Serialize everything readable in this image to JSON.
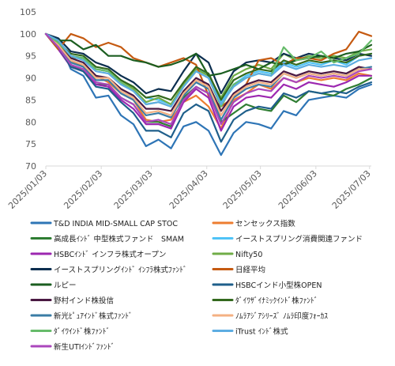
{
  "chart_data": {
    "type": "line",
    "title": "",
    "xlabel": "",
    "ylabel": "",
    "ylim": [
      70,
      105
    ],
    "yticks": [
      70,
      75,
      80,
      85,
      90,
      95,
      100,
      105
    ],
    "grid": false,
    "legend_position": "bottom",
    "x": [
      "2025-01-03",
      "2025-01-10",
      "2025-01-17",
      "2025-01-24",
      "2025-01-31",
      "2025-02-07",
      "2025-02-14",
      "2025-02-21",
      "2025-02-28",
      "2025-03-07",
      "2025-03-14",
      "2025-03-21",
      "2025-03-28",
      "2025-04-04",
      "2025-04-11",
      "2025-04-18",
      "2025-04-25",
      "2025-05-02",
      "2025-05-09",
      "2025-05-16",
      "2025-05-23",
      "2025-05-30",
      "2025-06-06",
      "2025-06-13",
      "2025-06-20",
      "2025-06-27",
      "2025-07-04"
    ],
    "xticks": [
      "2025/01/03",
      "2025/02/03",
      "2025/03/03",
      "2025/04/03",
      "2025/05/03",
      "2025/06/03",
      "2025/07/03"
    ],
    "series": [
      {
        "name": "T&D INDIA MID-SMALL CAP STOC",
        "color": "#2E75B6",
        "values": [
          100,
          98.5,
          92.0,
          90.5,
          85.5,
          86.0,
          81.5,
          79.5,
          74.5,
          76.0,
          74.0,
          79.0,
          80.0,
          78.0,
          72.5,
          77.5,
          80.0,
          79.5,
          78.5,
          82.5,
          81.5,
          85.0,
          85.5,
          86.0,
          85.5,
          87.5,
          88.5
        ]
      },
      {
        "name": "センセックス指数",
        "color": "#ED7D31",
        "values": [
          100,
          97.5,
          94.0,
          92.5,
          90.5,
          89.0,
          86.5,
          85.0,
          80.5,
          80.0,
          80.5,
          84.5,
          86.0,
          83.5,
          78.5,
          85.0,
          86.5,
          88.5,
          87.5,
          90.0,
          89.0,
          90.0,
          89.5,
          90.0,
          89.5,
          91.0,
          90.5
        ]
      },
      {
        "name": "高成長ｲﾝﾄﾞ 中型株式ファンド　SMAM",
        "color": "#2E7D32",
        "values": [
          100,
          97.5,
          93.0,
          91.5,
          88.5,
          88.5,
          85.5,
          84.0,
          80.0,
          80.0,
          79.0,
          85.5,
          88.0,
          86.5,
          80.0,
          82.0,
          84.0,
          83.0,
          82.5,
          86.0,
          84.5,
          87.0,
          86.5,
          86.0,
          87.5,
          88.5,
          90.0
        ]
      },
      {
        "name": "イーストスプリング消費関連ファンド",
        "color": "#4FC3F7",
        "values": [
          100,
          98.5,
          95.0,
          94.5,
          92.0,
          91.5,
          89.5,
          88.0,
          85.5,
          85.0,
          84.0,
          88.0,
          92.0,
          91.0,
          84.5,
          88.5,
          90.5,
          91.5,
          91.0,
          93.5,
          92.5,
          93.5,
          93.0,
          94.0,
          93.0,
          95.0,
          95.5
        ]
      },
      {
        "name": "HSBCｲﾝﾄﾞ インフラ株式オープン",
        "color": "#9C27B0",
        "values": [
          100,
          96.5,
          92.5,
          91.5,
          88.5,
          88.0,
          85.0,
          83.0,
          79.5,
          79.5,
          78.5,
          84.5,
          87.5,
          85.5,
          78.0,
          83.5,
          85.5,
          86.0,
          85.5,
          88.5,
          87.5,
          89.0,
          88.5,
          88.0,
          89.0,
          90.5,
          90.5
        ]
      },
      {
        "name": "Nifty50",
        "color": "#70AD47",
        "values": [
          100,
          97.5,
          94.5,
          94.5,
          92.0,
          91.5,
          89.5,
          87.5,
          84.5,
          85.5,
          84.0,
          88.5,
          92.0,
          90.5,
          85.5,
          90.5,
          92.0,
          93.0,
          92.0,
          95.5,
          94.0,
          95.0,
          94.5,
          95.0,
          94.5,
          96.0,
          96.5
        ]
      },
      {
        "name": "イーストスプリングｲﾝﾄﾞ ｲﾝﾌﾗ株式ﾌｧﾝﾄﾞ",
        "color": "#0B2E4F",
        "values": [
          100,
          99.0,
          96.0,
          95.5,
          93.5,
          92.5,
          90.5,
          89.0,
          86.5,
          87.5,
          87.0,
          91.5,
          95.5,
          93.5,
          86.5,
          91.5,
          93.5,
          94.0,
          93.5,
          95.5,
          94.5,
          95.5,
          95.0,
          94.5,
          94.0,
          95.5,
          95.0
        ]
      },
      {
        "name": "日経平均",
        "color": "#C55A11",
        "values": [
          100,
          96.5,
          100.0,
          99.0,
          97.0,
          98.0,
          97.0,
          94.5,
          93.5,
          92.5,
          93.5,
          94.5,
          93.0,
          86.0,
          83.5,
          85.5,
          88.5,
          94.0,
          94.5,
          93.0,
          94.5,
          94.5,
          94.0,
          95.5,
          96.5,
          100.5,
          99.5
        ]
      },
      {
        "name": "ルピー",
        "color": "#1B5E20",
        "values": [
          100,
          98.5,
          98.5,
          96.5,
          97.5,
          95.0,
          95.0,
          94.0,
          93.5,
          92.5,
          93.0,
          94.0,
          95.5,
          90.5,
          91.0,
          92.0,
          93.0,
          92.0,
          93.5,
          93.0,
          94.0,
          94.5,
          95.0,
          94.5,
          95.5,
          96.0,
          97.5
        ]
      },
      {
        "name": "HSBCインド小型株OPEN",
        "color": "#1F5F8B",
        "values": [
          100,
          97.0,
          92.5,
          91.5,
          88.0,
          87.5,
          84.5,
          82.0,
          78.0,
          78.0,
          76.5,
          82.0,
          84.0,
          82.5,
          75.5,
          80.5,
          82.5,
          83.5,
          83.0,
          86.5,
          85.5,
          87.0,
          86.5,
          87.0,
          86.5,
          88.0,
          89.0
        ]
      },
      {
        "name": "野村インド株投信",
        "color": "#4A1942",
        "values": [
          100,
          97.5,
          94.5,
          93.5,
          90.5,
          90.0,
          87.5,
          86.0,
          83.0,
          83.0,
          82.5,
          87.0,
          90.0,
          88.5,
          82.5,
          86.5,
          88.5,
          89.5,
          89.0,
          91.5,
          90.5,
          91.5,
          91.0,
          91.5,
          91.0,
          92.5,
          92.0
        ]
      },
      {
        "name": "ﾀﾞｲﾜｻﾞｲﾅﾐｯｸｲﾝﾄﾞ株ﾌｧﾝﾄﾞ",
        "color": "#33691E",
        "values": [
          100,
          98.0,
          95.5,
          95.0,
          92.5,
          92.0,
          89.5,
          88.0,
          85.5,
          86.0,
          85.0,
          89.0,
          92.5,
          91.0,
          85.0,
          89.5,
          91.0,
          92.0,
          91.5,
          94.0,
          93.0,
          94.0,
          93.5,
          94.0,
          93.5,
          95.0,
          95.5
        ]
      },
      {
        "name": "新光ﾋﾟｭｱｲﾝﾄﾞ株式ﾌｧﾝﾄﾞ",
        "color": "#3A7CA5",
        "values": [
          100,
          97.0,
          93.5,
          92.5,
          89.5,
          89.5,
          86.5,
          85.0,
          81.5,
          82.0,
          81.0,
          86.0,
          89.0,
          87.5,
          80.5,
          85.5,
          87.5,
          88.5,
          88.0,
          91.0,
          90.0,
          91.0,
          90.5,
          91.0,
          90.5,
          92.0,
          92.5
        ]
      },
      {
        "name": "ﾉﾑﾗｱｼﾞｱｼﾘｰｽﾞ ﾉﾑﾗ印度ﾌｫｰｶｽ",
        "color": "#F4B183",
        "values": [
          100,
          97.5,
          94.0,
          93.0,
          90.0,
          90.0,
          87.0,
          85.5,
          82.0,
          82.5,
          81.5,
          86.5,
          89.5,
          88.0,
          81.5,
          86.0,
          88.0,
          89.0,
          88.5,
          91.0,
          90.0,
          91.0,
          90.5,
          91.0,
          90.5,
          92.0,
          92.0
        ]
      },
      {
        "name": "ﾀﾞｲﾜｲﾝﾄﾞ株ﾌｧﾝﾄﾞ",
        "color": "#66BB6A",
        "values": [
          100,
          98.0,
          95.0,
          94.5,
          92.0,
          91.5,
          89.0,
          87.0,
          84.0,
          84.5,
          83.5,
          88.0,
          91.5,
          90.0,
          83.5,
          88.5,
          90.0,
          91.0,
          90.5,
          97.0,
          94.0,
          94.5,
          96.0,
          93.5,
          94.5,
          95.5,
          98.5
        ]
      },
      {
        "name": "iTrust ｲﾝﾄﾞ株式",
        "color": "#5DADE2",
        "values": [
          100,
          98.5,
          95.0,
          94.0,
          91.5,
          91.0,
          88.5,
          87.0,
          84.0,
          84.5,
          83.5,
          88.0,
          91.5,
          90.0,
          84.0,
          88.0,
          90.0,
          91.0,
          90.5,
          93.0,
          92.0,
          93.0,
          92.5,
          93.0,
          92.5,
          94.0,
          94.5
        ]
      },
      {
        "name": "新生UTIｲﾝﾄﾞﾌｧﾝﾄﾞ",
        "color": "#AB47BC",
        "values": [
          100,
          97.0,
          93.0,
          92.0,
          89.0,
          88.5,
          85.5,
          84.0,
          80.0,
          80.5,
          79.5,
          85.0,
          88.0,
          86.5,
          79.5,
          84.5,
          86.5,
          87.5,
          87.0,
          90.0,
          89.0,
          90.5,
          90.0,
          90.5,
          90.0,
          91.5,
          92.0
        ]
      }
    ]
  }
}
